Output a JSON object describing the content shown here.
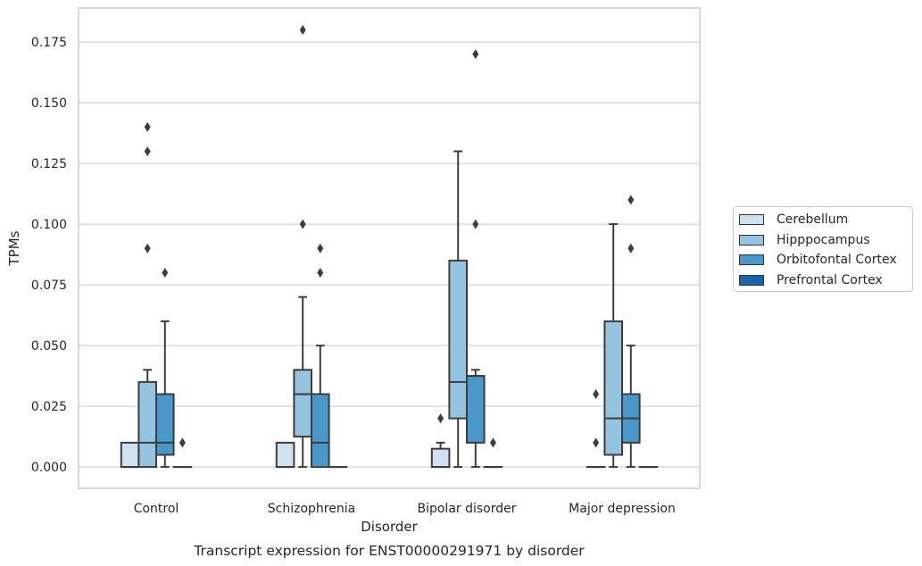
{
  "chart_data": {
    "type": "boxplot",
    "title": "Transcript expression for ENST00000291971 by disorder",
    "xlabel": "Disorder",
    "ylabel": "TPMs",
    "categories": [
      "Control",
      "Schizophrenia",
      "Bipolar disorder",
      "Major depression"
    ],
    "ylim": [
      -0.0088,
      0.189
    ],
    "yticks": [
      "0.000",
      "0.025",
      "0.050",
      "0.075",
      "0.100",
      "0.125",
      "0.150",
      "0.175"
    ],
    "grid": "horizontal",
    "legend_position": "right",
    "series": [
      {
        "name": "Cerebellum",
        "color": "#d0e1f2",
        "boxes": [
          {
            "category": "Control",
            "whisker_low": 0.0,
            "q1": 0.0,
            "median": 0.0,
            "q3": 0.01,
            "whisker_high": 0.01,
            "outliers": []
          },
          {
            "category": "Schizophrenia",
            "whisker_low": 0.0,
            "q1": 0.0,
            "median": 0.0,
            "q3": 0.01,
            "whisker_high": 0.01,
            "outliers": []
          },
          {
            "category": "Bipolar disorder",
            "whisker_low": 0.0,
            "q1": 0.0,
            "median": 0.0,
            "q3": 0.0075,
            "whisker_high": 0.01,
            "outliers": [
              0.02
            ]
          },
          {
            "category": "Major depression",
            "whisker_low": 0.0,
            "q1": 0.0,
            "median": 0.0,
            "q3": 0.0,
            "whisker_high": 0.0,
            "outliers": [
              0.01,
              0.03
            ]
          }
        ]
      },
      {
        "name": "Hipppocampus",
        "color": "#94c4df",
        "boxes": [
          {
            "category": "Control",
            "whisker_low": 0.0,
            "q1": 0.0,
            "median": 0.01,
            "q3": 0.035,
            "whisker_high": 0.04,
            "outliers": [
              0.09,
              0.13,
              0.14
            ]
          },
          {
            "category": "Schizophrenia",
            "whisker_low": 0.0,
            "q1": 0.0125,
            "median": 0.03,
            "q3": 0.04,
            "whisker_high": 0.07,
            "outliers": [
              0.1,
              0.18
            ]
          },
          {
            "category": "Bipolar disorder",
            "whisker_low": 0.0,
            "q1": 0.02,
            "median": 0.035,
            "q3": 0.085,
            "whisker_high": 0.13,
            "outliers": []
          },
          {
            "category": "Major depression",
            "whisker_low": 0.0,
            "q1": 0.005,
            "median": 0.02,
            "q3": 0.06,
            "whisker_high": 0.1,
            "outliers": []
          }
        ]
      },
      {
        "name": "Orbitofontal Cortex",
        "color": "#4a98c9",
        "boxes": [
          {
            "category": "Control",
            "whisker_low": 0.0,
            "q1": 0.005,
            "median": 0.01,
            "q3": 0.03,
            "whisker_high": 0.06,
            "outliers": [
              0.08
            ]
          },
          {
            "category": "Schizophrenia",
            "whisker_low": 0.0,
            "q1": 0.0,
            "median": 0.01,
            "q3": 0.03,
            "whisker_high": 0.05,
            "outliers": [
              0.08,
              0.09
            ]
          },
          {
            "category": "Bipolar disorder",
            "whisker_low": 0.0,
            "q1": 0.01,
            "median": 0.0375,
            "q3": 0.0375,
            "whisker_high": 0.04,
            "outliers": [
              0.1,
              0.17
            ]
          },
          {
            "category": "Major depression",
            "whisker_low": 0.0,
            "q1": 0.01,
            "median": 0.02,
            "q3": 0.03,
            "whisker_high": 0.05,
            "outliers": [
              0.09,
              0.11
            ]
          }
        ]
      },
      {
        "name": "Prefrontal Cortex",
        "color": "#1764ab",
        "boxes": [
          {
            "category": "Control",
            "whisker_low": 0.0,
            "q1": 0.0,
            "median": 0.0,
            "q3": 0.0,
            "whisker_high": 0.0,
            "outliers": [
              0.01
            ]
          },
          {
            "category": "Schizophrenia",
            "whisker_low": 0.0,
            "q1": 0.0,
            "median": 0.0,
            "q3": 0.0,
            "whisker_high": 0.0,
            "outliers": []
          },
          {
            "category": "Bipolar disorder",
            "whisker_low": 0.0,
            "q1": 0.0,
            "median": 0.0,
            "q3": 0.0,
            "whisker_high": 0.0,
            "outliers": [
              0.01
            ]
          },
          {
            "category": "Major depression",
            "whisker_low": 0.0,
            "q1": 0.0,
            "median": 0.0,
            "q3": 0.0,
            "whisker_high": 0.0,
            "outliers": []
          }
        ]
      }
    ]
  },
  "colors": {
    "grid": "#cccccc",
    "frame": "#cccccc",
    "box_edge": "#3d3d3d",
    "text": "#262626"
  }
}
